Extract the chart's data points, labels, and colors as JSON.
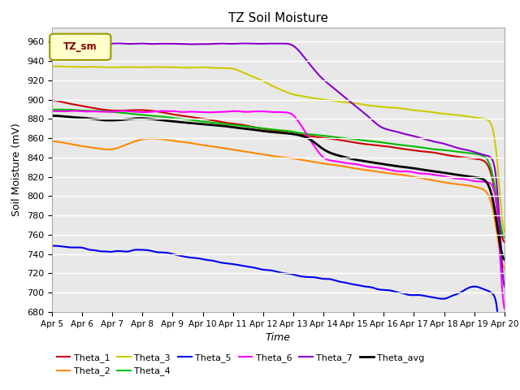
{
  "title": "TZ Soil Moisture",
  "xlabel": "Time",
  "ylabel": "Soil Moisture (mV)",
  "ylim": [
    680,
    975
  ],
  "yticks": [
    680,
    700,
    720,
    740,
    760,
    780,
    800,
    820,
    840,
    860,
    880,
    900,
    920,
    940,
    960
  ],
  "background_color": "#e8e8e8",
  "grid_color": "white",
  "legend_label": "TZ_sm",
  "series": {
    "Theta_1": {
      "color": "#cc0000",
      "linewidth": 1.5
    },
    "Theta_2": {
      "color": "#ff8800",
      "linewidth": 1.5
    },
    "Theta_3": {
      "color": "#cccc00",
      "linewidth": 1.5
    },
    "Theta_4": {
      "color": "#00bb00",
      "linewidth": 1.5
    },
    "Theta_5": {
      "color": "#0000ee",
      "linewidth": 1.5
    },
    "Theta_6": {
      "color": "#ff00ff",
      "linewidth": 1.5
    },
    "Theta_7": {
      "color": "#8800cc",
      "linewidth": 1.5
    },
    "Theta_avg": {
      "color": "#000000",
      "linewidth": 2.0
    }
  },
  "date_start": 5,
  "date_end": 20,
  "n_points": 500
}
